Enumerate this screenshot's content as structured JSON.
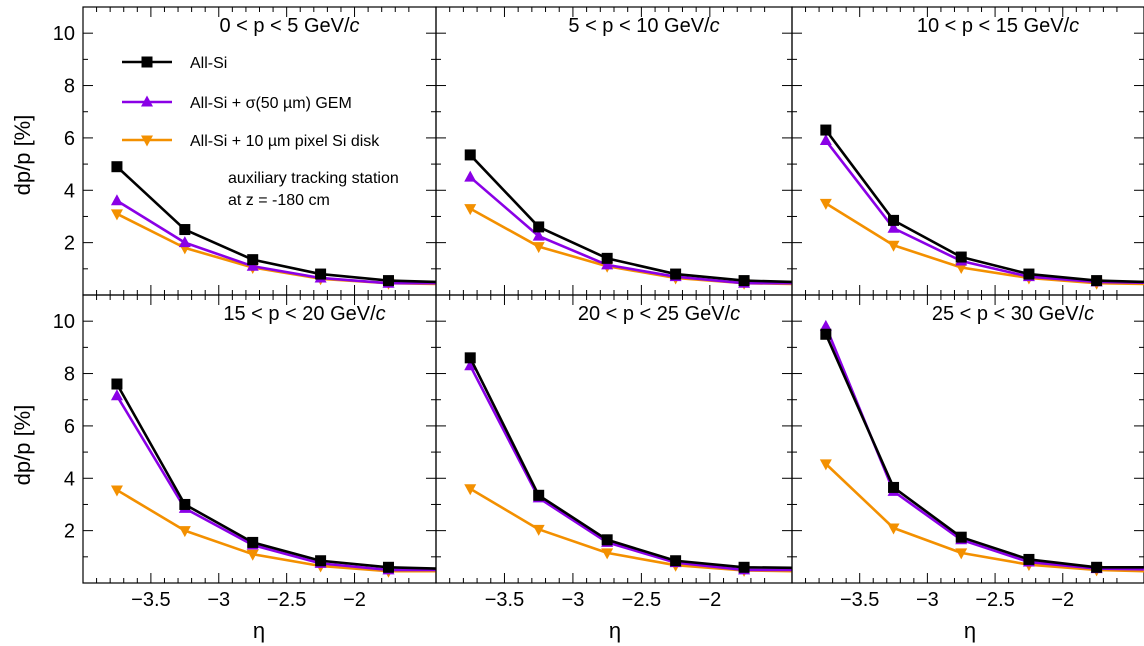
{
  "chart_data": {
    "type": "line",
    "layout": "2x3 panels",
    "ylabel": "dp/p [%]",
    "xlabel": "η",
    "xlim": [
      -4.0,
      -1.4
    ],
    "ylim": [
      0,
      11
    ],
    "x_ticks": [
      -3.5,
      -3,
      -2.5,
      -2
    ],
    "x_tick_labels": [
      "−3.5",
      "−3",
      "−2.5",
      "−2"
    ],
    "y_ticks": [
      2,
      4,
      6,
      8,
      10
    ],
    "y_tick_labels": [
      "2",
      "4",
      "6",
      "8",
      "10"
    ],
    "x": [
      -3.75,
      -3.25,
      -2.75,
      -2.25,
      -1.75
    ],
    "line_end_x": -1.4,
    "legend": {
      "placement": "top-left",
      "entries": [
        {
          "label": "All-Si",
          "color": "#000000",
          "marker": "square"
        },
        {
          "label": "All-Si + σ(50 µm) GEM",
          "color": "#8a00e6",
          "marker": "triangle-up"
        },
        {
          "label": "All-Si + 10 µm pixel Si disk",
          "color": "#f39000",
          "marker": "triangle-down"
        }
      ]
    },
    "annotation": [
      "auxiliary tracking station",
      "at z = -180 cm"
    ],
    "panels": [
      {
        "title": "0 < p < 5 GeV/",
        "title_c": "c",
        "series": [
          {
            "name": "All-Si",
            "values": [
              4.9,
              2.5,
              1.35,
              0.8,
              0.55
            ],
            "end_value": 0.5
          },
          {
            "name": "All-Si + σ(50 µm) GEM",
            "values": [
              3.6,
              2.0,
              1.1,
              0.65,
              0.45
            ],
            "end_value": 0.45
          },
          {
            "name": "All-Si + 10 µm pixel Si disk",
            "values": [
              3.1,
              1.8,
              1.05,
              0.62,
              0.45
            ],
            "end_value": 0.42
          }
        ]
      },
      {
        "title": "5 < p < 10 GeV/",
        "title_c": "c",
        "series": [
          {
            "name": "All-Si",
            "values": [
              5.35,
              2.6,
              1.4,
              0.8,
              0.55
            ],
            "end_value": 0.5
          },
          {
            "name": "All-Si + σ(50 µm) GEM",
            "values": [
              4.5,
              2.25,
              1.15,
              0.7,
              0.45
            ],
            "end_value": 0.45
          },
          {
            "name": "All-Si + 10 µm pixel Si disk",
            "values": [
              3.3,
              1.85,
              1.1,
              0.65,
              0.45
            ],
            "end_value": 0.42
          }
        ]
      },
      {
        "title": "10 < p < 15 GeV/",
        "title_c": "c",
        "series": [
          {
            "name": "All-Si",
            "values": [
              6.3,
              2.85,
              1.45,
              0.8,
              0.55
            ],
            "end_value": 0.5
          },
          {
            "name": "All-Si + σ(50 µm) GEM",
            "values": [
              5.9,
              2.55,
              1.3,
              0.7,
              0.5
            ],
            "end_value": 0.47
          },
          {
            "name": "All-Si + 10 µm pixel Si disk",
            "values": [
              3.5,
              1.9,
              1.05,
              0.65,
              0.45
            ],
            "end_value": 0.42
          }
        ]
      },
      {
        "title": "15 < p < 20 GeV/",
        "title_c": "c",
        "series": [
          {
            "name": "All-Si",
            "values": [
              7.6,
              3.0,
              1.55,
              0.85,
              0.6
            ],
            "end_value": 0.55
          },
          {
            "name": "All-Si + σ(50 µm) GEM",
            "values": [
              7.15,
              2.85,
              1.45,
              0.75,
              0.5
            ],
            "end_value": 0.5
          },
          {
            "name": "All-Si + 10 µm pixel Si disk",
            "values": [
              3.55,
              2.0,
              1.1,
              0.65,
              0.45
            ],
            "end_value": 0.45
          }
        ]
      },
      {
        "title": "20 < p < 25 GeV/",
        "title_c": "c",
        "series": [
          {
            "name": "All-Si",
            "values": [
              8.6,
              3.35,
              1.65,
              0.85,
              0.6
            ],
            "end_value": 0.58
          },
          {
            "name": "All-Si + σ(50 µm) GEM",
            "values": [
              8.3,
              3.25,
              1.55,
              0.78,
              0.5
            ],
            "end_value": 0.5
          },
          {
            "name": "All-Si + 10 µm pixel Si disk",
            "values": [
              3.6,
              2.05,
              1.15,
              0.68,
              0.48
            ],
            "end_value": 0.45
          }
        ]
      },
      {
        "title": "25 < p < 30 GeV/",
        "title_c": "c",
        "series": [
          {
            "name": "All-Si",
            "values": [
              9.5,
              3.65,
              1.75,
              0.9,
              0.6
            ],
            "end_value": 0.6
          },
          {
            "name": "All-Si + σ(50 µm) GEM",
            "values": [
              9.8,
              3.5,
              1.65,
              0.8,
              0.55
            ],
            "end_value": 0.52
          },
          {
            "name": "All-Si + 10 µm pixel Si disk",
            "values": [
              4.55,
              2.1,
              1.15,
              0.7,
              0.5
            ],
            "end_value": 0.45
          }
        ]
      }
    ]
  }
}
